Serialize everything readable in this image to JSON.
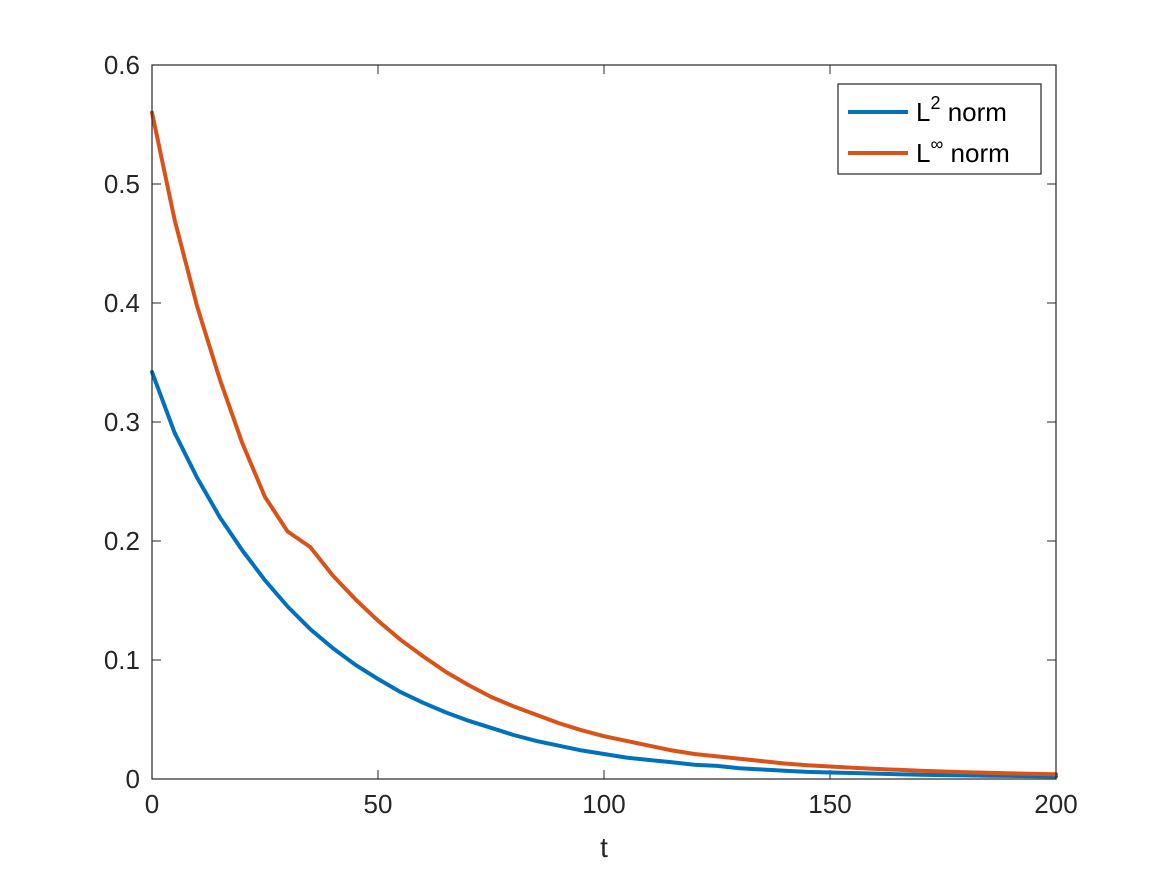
{
  "chart_data": {
    "type": "line",
    "title": "",
    "xlabel": "t",
    "ylabel": "",
    "xlim": [
      0,
      200
    ],
    "ylim": [
      0,
      0.6
    ],
    "xticks": [
      "0",
      "50",
      "100",
      "150",
      "200"
    ],
    "yticks": [
      "0",
      "0.1",
      "0.2",
      "0.3",
      "0.4",
      "0.5",
      "0.6"
    ],
    "grid": false,
    "legend_position": "top-right",
    "series": [
      {
        "name": "L² norm",
        "legend_base": "L",
        "legend_sup": "2",
        "legend_suffix": " norm",
        "color": "#0072BD",
        "x": [
          0,
          5,
          10,
          15,
          20,
          25,
          30,
          35,
          40,
          45,
          50,
          55,
          60,
          65,
          70,
          75,
          80,
          85,
          90,
          95,
          100,
          105,
          110,
          115,
          120,
          125,
          130,
          135,
          140,
          145,
          150,
          155,
          160,
          165,
          170,
          175,
          180,
          185,
          190,
          195,
          200
        ],
        "y": [
          0.342,
          0.291,
          0.253,
          0.22,
          0.192,
          0.167,
          0.145,
          0.126,
          0.11,
          0.096,
          0.084,
          0.073,
          0.064,
          0.056,
          0.049,
          0.043,
          0.037,
          0.032,
          0.028,
          0.024,
          0.021,
          0.018,
          0.016,
          0.014,
          0.012,
          0.011,
          0.009,
          0.008,
          0.007,
          0.006,
          0.0055,
          0.005,
          0.0045,
          0.004,
          0.0036,
          0.0033,
          0.003,
          0.0028,
          0.0026,
          0.0024,
          0.0022
        ]
      },
      {
        "name": "L∞ norm",
        "legend_base": "L",
        "legend_sup": "∞",
        "legend_suffix": " norm",
        "color": "#D95319",
        "x": [
          0,
          5,
          10,
          15,
          20,
          25,
          30,
          35,
          40,
          45,
          50,
          55,
          60,
          65,
          70,
          75,
          80,
          85,
          90,
          95,
          100,
          105,
          110,
          115,
          120,
          125,
          130,
          135,
          140,
          145,
          150,
          155,
          160,
          165,
          170,
          175,
          180,
          185,
          190,
          195,
          200
        ],
        "y": [
          0.56,
          0.47,
          0.397,
          0.336,
          0.282,
          0.237,
          0.208,
          0.195,
          0.171,
          0.151,
          0.133,
          0.117,
          0.103,
          0.09,
          0.079,
          0.069,
          0.061,
          0.054,
          0.047,
          0.041,
          0.036,
          0.032,
          0.028,
          0.024,
          0.021,
          0.019,
          0.017,
          0.015,
          0.013,
          0.0115,
          0.0105,
          0.0095,
          0.0085,
          0.0077,
          0.007,
          0.0063,
          0.0057,
          0.0052,
          0.0047,
          0.0043,
          0.004
        ]
      }
    ]
  }
}
